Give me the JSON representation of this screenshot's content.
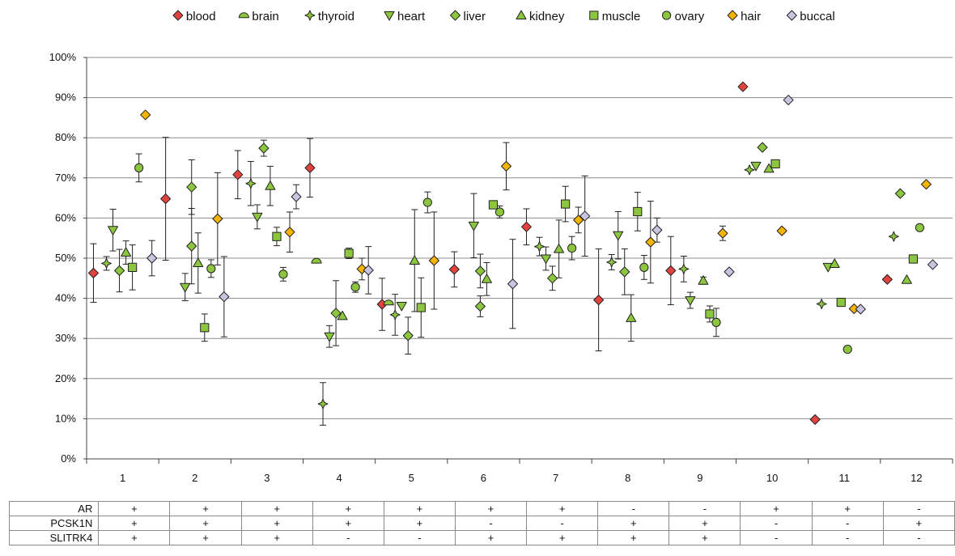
{
  "chart_data": {
    "type": "scatter",
    "categories": [
      "1",
      "2",
      "3",
      "4",
      "5",
      "6",
      "7",
      "8",
      "9",
      "10",
      "11",
      "12"
    ],
    "ylim": [
      0,
      100
    ],
    "y_ticks": [
      "0%",
      "10%",
      "20%",
      "30%",
      "40%",
      "50%",
      "60%",
      "70%",
      "80%",
      "90%",
      "100%"
    ],
    "grid": true,
    "legend_position": "top",
    "series": [
      {
        "name": "blood",
        "marker": "diamond",
        "color": "#e2433f",
        "values": [
          [
            1,
            46.3,
            7.3
          ],
          [
            2,
            64.8,
            15.3
          ],
          [
            3,
            70.8,
            6
          ],
          [
            4,
            72.5,
            7.3
          ],
          [
            5,
            38.5,
            6.5
          ],
          [
            6,
            47.2,
            4.4
          ],
          [
            7,
            57.8,
            4.5
          ],
          [
            8,
            39.6,
            12.7
          ],
          [
            9,
            46.9,
            8.5
          ],
          [
            10,
            92.7,
            null
          ],
          [
            11,
            9.8,
            null
          ],
          [
            12,
            44.7,
            null
          ]
        ]
      },
      {
        "name": "brain",
        "marker": "half-circle",
        "color": "#8cc63f",
        "values": [
          [
            4,
            49.3,
            null
          ],
          [
            5,
            38.9,
            null
          ]
        ]
      },
      {
        "name": "thyroid",
        "marker": "star4",
        "color": "#8cc63f",
        "values": [
          [
            1,
            48.7,
            1.7
          ],
          [
            3,
            68.6,
            5.5
          ],
          [
            4,
            13.7,
            5.3
          ],
          [
            5,
            35.9,
            5.1
          ],
          [
            7,
            52.9,
            2.3
          ],
          [
            8,
            49,
            1.9
          ],
          [
            9,
            47.3,
            3.2
          ],
          [
            10,
            72,
            null
          ],
          [
            11,
            38.6,
            null
          ],
          [
            12,
            55.4,
            null
          ]
        ]
      },
      {
        "name": "heart",
        "marker": "triangle-down",
        "color": "#8cc63f",
        "values": [
          [
            1,
            57,
            5.2
          ],
          [
            2,
            42.8,
            3.4
          ],
          [
            3,
            60.3,
            3
          ],
          [
            4,
            30.5,
            2.7
          ],
          [
            5,
            38.1,
            null
          ],
          [
            6,
            58.1,
            8
          ],
          [
            7,
            49.9,
            2.9
          ],
          [
            8,
            55.7,
            5.9
          ],
          [
            9,
            39.5,
            2
          ],
          [
            10,
            73,
            null
          ],
          [
            11,
            47.8,
            null
          ]
        ]
      },
      {
        "name": "liver",
        "marker": "diamond",
        "color": "#8cc63f",
        "values": [
          [
            1,
            46.9,
            5.3
          ],
          [
            2,
            67.7,
            6.8
          ],
          [
            2,
            53,
            9.4
          ],
          [
            3,
            77.4,
            2
          ],
          [
            4,
            36.3,
            8.1
          ],
          [
            5,
            30.7,
            4.6
          ],
          [
            6,
            46.8,
            4.2
          ],
          [
            6,
            38,
            2.6
          ],
          [
            7,
            45,
            3
          ],
          [
            8,
            46.6,
            5.7
          ],
          [
            10,
            77.6,
            null
          ],
          [
            12,
            66.1,
            null
          ]
        ]
      },
      {
        "name": "kidney",
        "marker": "triangle-up",
        "color": "#8cc63f",
        "values": [
          [
            1,
            51.4,
            2.9
          ],
          [
            2,
            48.8,
            7.5
          ],
          [
            3,
            68,
            4.9
          ],
          [
            4,
            35.6,
            null
          ],
          [
            5,
            49.4,
            12.7
          ],
          [
            6,
            44.8,
            4.1
          ],
          [
            7,
            52.3,
            7.2
          ],
          [
            8,
            35.1,
            5.8
          ],
          [
            9,
            44.4,
            0.9
          ],
          [
            10,
            72.3,
            null
          ],
          [
            11,
            48.6,
            null
          ],
          [
            12,
            44.6,
            null
          ]
        ]
      },
      {
        "name": "muscle",
        "marker": "square",
        "color": "#8cc63f",
        "values": [
          [
            1,
            47.7,
            5.6
          ],
          [
            2,
            32.7,
            3.4
          ],
          [
            3,
            55.4,
            2.3
          ],
          [
            4,
            51.2,
            1.3
          ],
          [
            5,
            37.7,
            7.4
          ],
          [
            6,
            63.3,
            null
          ],
          [
            7,
            63.5,
            4.4
          ],
          [
            8,
            61.6,
            4.8
          ],
          [
            9,
            36.1,
            2
          ],
          [
            10,
            73.5,
            null
          ],
          [
            11,
            39,
            null
          ],
          [
            12,
            49.8,
            null
          ]
        ]
      },
      {
        "name": "ovary",
        "marker": "circle",
        "color": "#8cc63f",
        "values": [
          [
            1,
            72.5,
            3.5
          ],
          [
            2,
            47.4,
            2.2
          ],
          [
            3,
            46,
            1.7
          ],
          [
            4,
            42.8,
            1.3
          ],
          [
            5,
            63.9,
            2.6
          ],
          [
            6,
            61.5,
            1.5
          ],
          [
            7,
            52.5,
            2.9
          ],
          [
            8,
            47.7,
            3
          ],
          [
            9,
            34,
            3.5
          ],
          [
            11,
            27.3,
            null
          ],
          [
            12,
            57.6,
            null
          ]
        ]
      },
      {
        "name": "hair",
        "marker": "diamond",
        "color": "#f4b400",
        "values": [
          [
            1,
            85.7,
            null
          ],
          [
            2,
            59.8,
            11.5
          ],
          [
            3,
            56.5,
            5
          ],
          [
            4,
            47.3,
            2.7
          ],
          [
            5,
            49.4,
            12.1
          ],
          [
            6,
            72.9,
            5.9
          ],
          [
            7,
            59.5,
            3.2
          ],
          [
            8,
            54,
            10.2
          ],
          [
            9,
            56.2,
            1.8
          ],
          [
            10,
            56.8,
            null
          ],
          [
            11,
            37.4,
            null
          ],
          [
            12,
            68.4,
            null
          ]
        ]
      },
      {
        "name": "buccal",
        "marker": "diamond",
        "color": "#c9c5e1",
        "values": [
          [
            1,
            50,
            4.4
          ],
          [
            2,
            40.4,
            10
          ],
          [
            3,
            65.3,
            3
          ],
          [
            4,
            47,
            5.9
          ],
          [
            6,
            43.6,
            11.1
          ],
          [
            7,
            60.5,
            10
          ],
          [
            8,
            57,
            3
          ],
          [
            9,
            46.6,
            null
          ],
          [
            10,
            89.4,
            null
          ],
          [
            11,
            37.3,
            null
          ],
          [
            12,
            48.4,
            null
          ]
        ]
      }
    ],
    "table": {
      "rows": [
        {
          "label": "AR",
          "values": [
            "+",
            "+",
            "+",
            "+",
            "+",
            "+",
            "+",
            "-",
            "-",
            "+",
            "+",
            "-"
          ]
        },
        {
          "label": "PCSK1N",
          "values": [
            "+",
            "+",
            "+",
            "+",
            "+",
            "-",
            "-",
            "+",
            "+",
            "-",
            "-",
            "+"
          ]
        },
        {
          "label": "SLITRK4",
          "values": [
            "+",
            "+",
            "+",
            "-",
            "-",
            "+",
            "+",
            "+",
            "+",
            "-",
            "-",
            "-"
          ]
        }
      ]
    }
  }
}
